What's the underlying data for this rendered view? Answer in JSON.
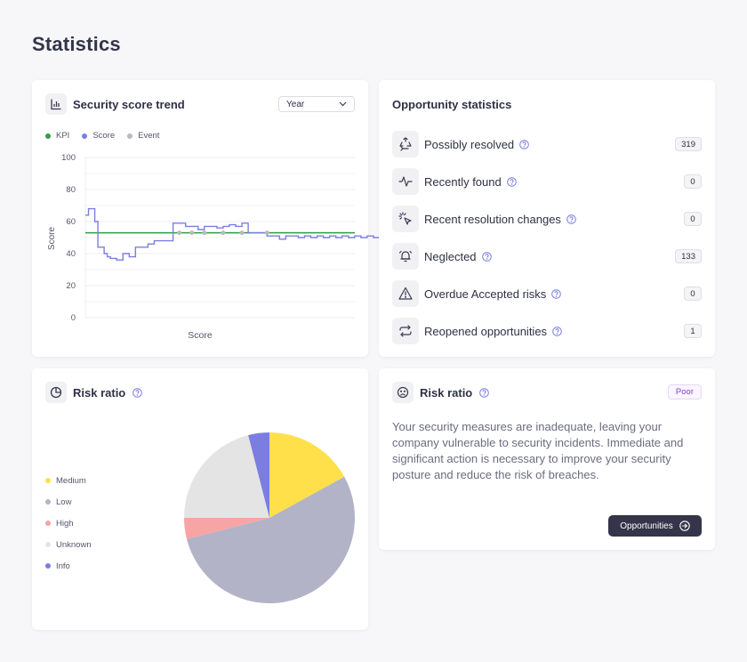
{
  "page": {
    "title": "Statistics"
  },
  "trend": {
    "title": "Security score trend",
    "range_select": "Year",
    "legend": [
      {
        "label": "KPI",
        "color": "#2f9e44"
      },
      {
        "label": "Score",
        "color": "#7b7ee0"
      },
      {
        "label": "Event",
        "color": "#b9b9bf"
      }
    ],
    "y_axis_label": "Score",
    "x_axis_label": "Score",
    "y_ticks": [
      "100",
      "80",
      "60",
      "40",
      "20",
      "0"
    ]
  },
  "chart_data": {
    "type": "line",
    "title": "Security score trend",
    "xlabel": "Score",
    "ylabel": "Score",
    "ylim": [
      0,
      100
    ],
    "kpi": 53,
    "series": [
      {
        "name": "Score",
        "x": [
          0,
          0.5,
          1,
          1.5,
          2,
          2.5,
          3,
          3.5,
          4,
          5,
          6,
          7,
          8,
          9,
          10,
          11,
          12,
          13,
          14,
          15,
          16,
          17,
          18,
          19,
          20,
          21,
          22,
          23,
          24,
          25,
          26,
          27,
          28,
          29,
          30,
          31,
          32,
          33,
          34,
          35,
          36,
          37,
          38,
          39,
          40,
          41,
          42,
          43,
          44,
          45,
          46,
          47
        ],
        "values": [
          64,
          68,
          68,
          60,
          44,
          44,
          40,
          38,
          37,
          36,
          40,
          38,
          44,
          44,
          46,
          48,
          48,
          48,
          59,
          59,
          57,
          57,
          55,
          57,
          57,
          56,
          57,
          58,
          57,
          59,
          53,
          53,
          53,
          51,
          51,
          49,
          51,
          51,
          50,
          51,
          50,
          51,
          50,
          51,
          50,
          51,
          50,
          51,
          50,
          51,
          50,
          51
        ]
      }
    ],
    "events": [
      {
        "x": 15,
        "y": 53
      },
      {
        "x": 17,
        "y": 53
      },
      {
        "x": 19,
        "y": 53
      },
      {
        "x": 22,
        "y": 53
      },
      {
        "x": 25,
        "y": 53
      },
      {
        "x": 29,
        "y": 53
      }
    ]
  },
  "opportunities": {
    "title": "Opportunity statistics",
    "items": [
      {
        "label": "Possibly resolved",
        "count": "319",
        "icon": "recycle-icon"
      },
      {
        "label": "Recently found",
        "count": "0",
        "icon": "pulse-icon"
      },
      {
        "label": "Recent resolution changes",
        "count": "0",
        "icon": "cursor-click-icon"
      },
      {
        "label": "Neglected",
        "count": "133",
        "icon": "bell-ring-icon"
      },
      {
        "label": "Overdue Accepted risks",
        "count": "0",
        "icon": "warning-icon"
      },
      {
        "label": "Reopened opportunities",
        "count": "1",
        "icon": "repeat-icon"
      }
    ]
  },
  "risk_chart": {
    "title": "Risk ratio",
    "legend": [
      {
        "label": "Medium",
        "color": "#ffe04b",
        "value": 17
      },
      {
        "label": "Low",
        "color": "#b3b3c8",
        "value": 54
      },
      {
        "label": "High",
        "color": "#f7a4a4",
        "value": 4
      },
      {
        "label": "Unknown",
        "color": "#e4e4e4",
        "value": 21
      },
      {
        "label": "Info",
        "color": "#7b7ee0",
        "value": 4
      }
    ]
  },
  "risk_text": {
    "title": "Risk ratio",
    "badge": "Poor",
    "description": "Your security measures are inadequate, leaving your company vulnerable to security incidents. Immediate and significant action is necessary to improve your security posture and reduce the risk of breaches.",
    "button_label": "Opportunities"
  }
}
